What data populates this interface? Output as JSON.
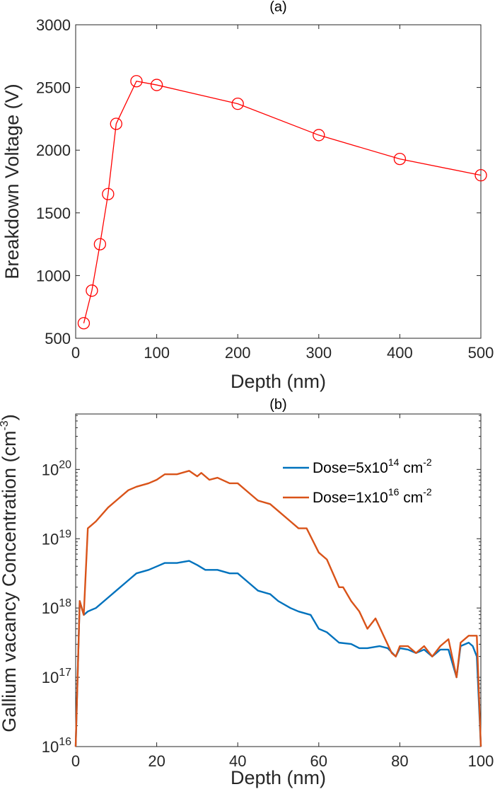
{
  "chart_data": [
    {
      "type": "line",
      "title": "(a)",
      "xlabel": "Depth (nm)",
      "ylabel": "Breakdown Voltage (V)",
      "xlim": [
        0,
        500
      ],
      "ylim": [
        500,
        3000
      ],
      "xticks": [
        "0",
        "100",
        "200",
        "300",
        "400",
        "500"
      ],
      "yticks": [
        "500",
        "1000",
        "1500",
        "2000",
        "2500",
        "3000"
      ],
      "marker": "circle",
      "color": "#ff0000",
      "series": [
        {
          "name": "Breakdown Voltage",
          "x": [
            10,
            20,
            30,
            40,
            50,
            75,
            100,
            200,
            300,
            400,
            500
          ],
          "y": [
            620,
            880,
            1250,
            1650,
            2210,
            2550,
            2520,
            2370,
            2120,
            1930,
            1800
          ]
        }
      ]
    },
    {
      "type": "line",
      "title": "(b)",
      "xlabel": "Depth (nm)",
      "ylabel": "Gallium vacancy Concentration (cm",
      "ylabel_sup": "-3",
      "ylabel_end": ")",
      "yscale": "log",
      "xlim": [
        0,
        100
      ],
      "ylim_log10": [
        16,
        20.8
      ],
      "xticks": [
        "0",
        "20",
        "40",
        "60",
        "80",
        "100"
      ],
      "yticks": [
        {
          "base": "10",
          "exp": "16"
        },
        {
          "base": "10",
          "exp": "17"
        },
        {
          "base": "10",
          "exp": "18"
        },
        {
          "base": "10",
          "exp": "19"
        },
        {
          "base": "10",
          "exp": "20"
        }
      ],
      "legend_position": "top-right",
      "series": [
        {
          "name": "Dose=5x10",
          "name_sup": "14",
          "name_unit": " cm",
          "name_unit_sup": "-2",
          "color": "#0072bd",
          "x": [
            0,
            1,
            2,
            3,
            5,
            8,
            10,
            13,
            15,
            18,
            20,
            22,
            25,
            28,
            30,
            32,
            35,
            38,
            40,
            43,
            45,
            48,
            50,
            53,
            55,
            58,
            60,
            62,
            65,
            68,
            70,
            72,
            75,
            77,
            79,
            80,
            82,
            84,
            86,
            88,
            90,
            92,
            94,
            95,
            97,
            98,
            99,
            100
          ],
          "log10y": [
            16,
            18.1,
            17.9,
            17.95,
            18.0,
            18.15,
            18.25,
            18.4,
            18.5,
            18.55,
            18.6,
            18.65,
            18.65,
            18.68,
            18.62,
            18.55,
            18.55,
            18.5,
            18.5,
            18.35,
            18.25,
            18.2,
            18.1,
            18.0,
            17.95,
            17.9,
            17.7,
            17.65,
            17.5,
            17.48,
            17.42,
            17.42,
            17.45,
            17.42,
            17.3,
            17.42,
            17.4,
            17.35,
            17.4,
            17.3,
            17.4,
            17.4,
            17.0,
            17.45,
            17.5,
            17.45,
            17.3,
            16
          ]
        },
        {
          "name": "Dose=1x10",
          "name_sup": "16",
          "name_unit": " cm",
          "name_unit_sup": "-2",
          "color": "#d95319",
          "x": [
            0,
            1,
            2,
            3,
            5,
            8,
            10,
            13,
            15,
            18,
            20,
            22,
            25,
            28,
            30,
            31,
            33,
            35,
            38,
            40,
            43,
            45,
            48,
            50,
            53,
            55,
            57,
            60,
            62,
            65,
            66,
            68,
            70,
            72,
            74,
            76,
            78,
            79,
            80,
            82,
            84,
            86,
            88,
            90,
            92,
            94,
            95,
            97,
            99,
            100
          ],
          "log10y": [
            16,
            18.1,
            17.9,
            19.15,
            19.25,
            19.45,
            19.55,
            19.7,
            19.75,
            19.8,
            19.85,
            19.93,
            19.93,
            19.98,
            19.9,
            19.95,
            19.85,
            19.88,
            19.8,
            19.8,
            19.65,
            19.55,
            19.5,
            19.4,
            19.25,
            19.15,
            19.15,
            18.8,
            18.7,
            18.3,
            18.3,
            18.1,
            17.95,
            17.7,
            17.85,
            17.6,
            17.35,
            17.3,
            17.45,
            17.45,
            17.35,
            17.45,
            17.3,
            17.45,
            17.55,
            17.0,
            17.5,
            17.6,
            17.6,
            16
          ]
        }
      ]
    }
  ]
}
